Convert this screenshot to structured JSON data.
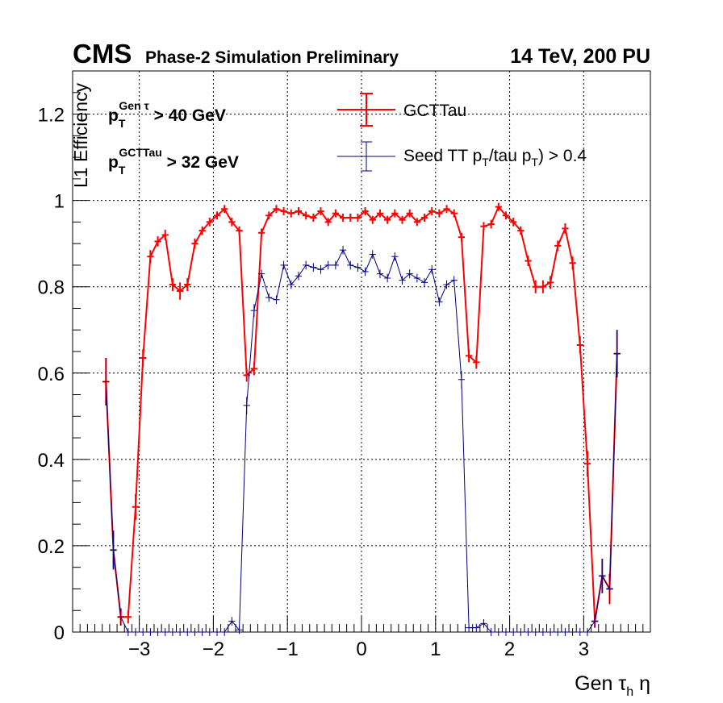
{
  "header": {
    "experiment": "CMS",
    "subtitle": "Phase-2 Simulation Preliminary",
    "energy": "14 TeV, 200 PU"
  },
  "cuts": {
    "cut1_p": "p",
    "cut1_sub": "T",
    "cut1_sup": "Gen τ",
    "cut1_rest": " > 40 GeV",
    "cut2_p": "p",
    "cut2_sub": "T",
    "cut2_sup": "GCTTau",
    "cut2_rest": " > 32 GeV"
  },
  "legend": {
    "item1": "GCTTau",
    "item2_pre": "Seed TT p",
    "item2_sub1": "T",
    "item2_mid": "/tau p",
    "item2_sub2": "T",
    "item2_post": ") > 0.4"
  },
  "axes": {
    "ylabel": "L1 Efficiency",
    "xlabel_pre": "Gen τ",
    "xlabel_sub": "h",
    "xlabel_post": " η"
  },
  "colors": {
    "gcttau": "#ff0000",
    "seed": "#000080",
    "grid": "#000000",
    "axis": "#000000"
  },
  "chart_data": {
    "type": "line",
    "xlim": [
      -3.9,
      3.9
    ],
    "ylim": [
      0,
      1.3
    ],
    "grid": true,
    "legend_position": "top-center",
    "xticks": [
      -3,
      -2,
      -1,
      0,
      1,
      2,
      3
    ],
    "xtick_labels": [
      "−3",
      "−2",
      "−1",
      "0",
      "1",
      "2",
      "3"
    ],
    "yticks": [
      0,
      0.2,
      0.4,
      0.6,
      0.8,
      1,
      1.2
    ],
    "ytick_labels": [
      "0",
      "0.2",
      "0.4",
      "0.6",
      "0.8",
      "1",
      "1.2"
    ],
    "series": [
      {
        "name": "GCTTau",
        "color": "#ff0000",
        "x": [
          -3.45,
          -3.35,
          -3.25,
          -3.15,
          -3.05,
          -2.95,
          -2.85,
          -2.75,
          -2.65,
          -2.55,
          -2.45,
          -2.35,
          -2.25,
          -2.15,
          -2.05,
          -1.95,
          -1.85,
          -1.75,
          -1.65,
          -1.55,
          -1.45,
          -1.35,
          -1.25,
          -1.15,
          -1.05,
          -0.95,
          -0.85,
          -0.75,
          -0.65,
          -0.55,
          -0.45,
          -0.35,
          -0.25,
          -0.15,
          -0.05,
          0.05,
          0.15,
          0.25,
          0.35,
          0.45,
          0.55,
          0.65,
          0.75,
          0.85,
          0.95,
          1.05,
          1.15,
          1.25,
          1.35,
          1.45,
          1.55,
          1.65,
          1.75,
          1.85,
          1.95,
          2.05,
          2.15,
          2.25,
          2.35,
          2.45,
          2.55,
          2.65,
          2.75,
          2.85,
          2.95,
          3.05,
          3.15,
          3.25,
          3.35,
          3.45
        ],
        "y": [
          0.58,
          0.19,
          0.035,
          0.035,
          0.29,
          0.635,
          0.87,
          0.905,
          0.92,
          0.805,
          0.79,
          0.805,
          0.9,
          0.93,
          0.95,
          0.965,
          0.98,
          0.95,
          0.93,
          0.595,
          0.61,
          0.925,
          0.965,
          0.98,
          0.975,
          0.97,
          0.975,
          0.965,
          0.96,
          0.975,
          0.95,
          0.97,
          0.96,
          0.96,
          0.96,
          0.975,
          0.955,
          0.97,
          0.955,
          0.97,
          0.955,
          0.97,
          0.95,
          0.96,
          0.975,
          0.97,
          0.98,
          0.97,
          0.915,
          0.64,
          0.625,
          0.94,
          0.945,
          0.985,
          0.965,
          0.95,
          0.93,
          0.86,
          0.8,
          0.8,
          0.81,
          0.895,
          0.935,
          0.855,
          0.665,
          0.39,
          0.025,
          0.13,
          0.1,
          0.645
        ],
        "yerr": [
          0.055,
          0.045,
          0.02,
          0.015,
          0.03,
          0.02,
          0.015,
          0.012,
          0.012,
          0.015,
          0.02,
          0.015,
          0.012,
          0.01,
          0.01,
          0.008,
          0.008,
          0.01,
          0.01,
          0.015,
          0.015,
          0.01,
          0.008,
          0.006,
          0.006,
          0.006,
          0.006,
          0.006,
          0.006,
          0.006,
          0.006,
          0.006,
          0.006,
          0.006,
          0.006,
          0.006,
          0.006,
          0.006,
          0.006,
          0.006,
          0.006,
          0.006,
          0.006,
          0.006,
          0.006,
          0.006,
          0.006,
          0.006,
          0.01,
          0.015,
          0.015,
          0.01,
          0.01,
          0.008,
          0.008,
          0.01,
          0.01,
          0.012,
          0.015,
          0.015,
          0.015,
          0.012,
          0.012,
          0.015,
          0.02,
          0.03,
          0.015,
          0.04,
          0.035,
          0.055
        ]
      },
      {
        "name": "Seed TT pT/tau pT) > 0.4",
        "color": "#000080",
        "x": [
          -3.45,
          -3.35,
          -3.25,
          -3.15,
          -3.05,
          -2.95,
          -2.85,
          -2.75,
          -2.65,
          -2.55,
          -2.45,
          -2.35,
          -2.25,
          -2.15,
          -2.05,
          -1.95,
          -1.85,
          -1.75,
          -1.65,
          -1.55,
          -1.45,
          -1.35,
          -1.25,
          -1.15,
          -1.05,
          -0.95,
          -0.85,
          -0.75,
          -0.65,
          -0.55,
          -0.45,
          -0.35,
          -0.25,
          -0.15,
          -0.05,
          0.05,
          0.15,
          0.25,
          0.35,
          0.45,
          0.55,
          0.65,
          0.75,
          0.85,
          0.95,
          1.05,
          1.15,
          1.25,
          1.35,
          1.45,
          1.55,
          1.65,
          1.75,
          1.85,
          1.95,
          2.05,
          2.15,
          2.25,
          2.35,
          2.45,
          2.55,
          2.65,
          2.75,
          2.85,
          2.95,
          3.05,
          3.15,
          3.25,
          3.35,
          3.45
        ],
        "y": [
          0.58,
          0.19,
          0.035,
          0.0,
          0.0,
          0.0,
          0.0,
          0.0,
          0.0,
          0.0,
          0.0,
          0.0,
          0.0,
          0.0,
          0.0,
          0.0,
          0.0,
          0.025,
          0.005,
          0.525,
          0.745,
          0.83,
          0.775,
          0.77,
          0.85,
          0.805,
          0.825,
          0.85,
          0.845,
          0.84,
          0.85,
          0.85,
          0.885,
          0.85,
          0.845,
          0.835,
          0.875,
          0.83,
          0.82,
          0.87,
          0.815,
          0.83,
          0.82,
          0.81,
          0.84,
          0.765,
          0.805,
          0.815,
          0.585,
          0.01,
          0.01,
          0.02,
          0.0,
          0.0,
          0.0,
          0.0,
          0.0,
          0.0,
          0.0,
          0.0,
          0.0,
          0.0,
          0.0,
          0.0,
          0.0,
          0.0,
          0.025,
          0.13,
          0.1,
          0.645
        ],
        "yerr": [
          0.055,
          0.045,
          0.02,
          0.0,
          0.0,
          0.0,
          0.0,
          0.0,
          0.0,
          0.0,
          0.0,
          0.0,
          0.0,
          0.0,
          0.0,
          0.0,
          0.0,
          0.01,
          0.005,
          0.02,
          0.015,
          0.01,
          0.01,
          0.01,
          0.01,
          0.01,
          0.01,
          0.01,
          0.01,
          0.01,
          0.01,
          0.01,
          0.01,
          0.01,
          0.01,
          0.01,
          0.01,
          0.01,
          0.01,
          0.01,
          0.01,
          0.01,
          0.01,
          0.01,
          0.01,
          0.01,
          0.01,
          0.01,
          0.02,
          0.005,
          0.005,
          0.01,
          0.0,
          0.0,
          0.0,
          0.0,
          0.0,
          0.0,
          0.0,
          0.0,
          0.0,
          0.0,
          0.0,
          0.0,
          0.0,
          0.0,
          0.015,
          0.04,
          0.035,
          0.055
        ]
      }
    ]
  }
}
